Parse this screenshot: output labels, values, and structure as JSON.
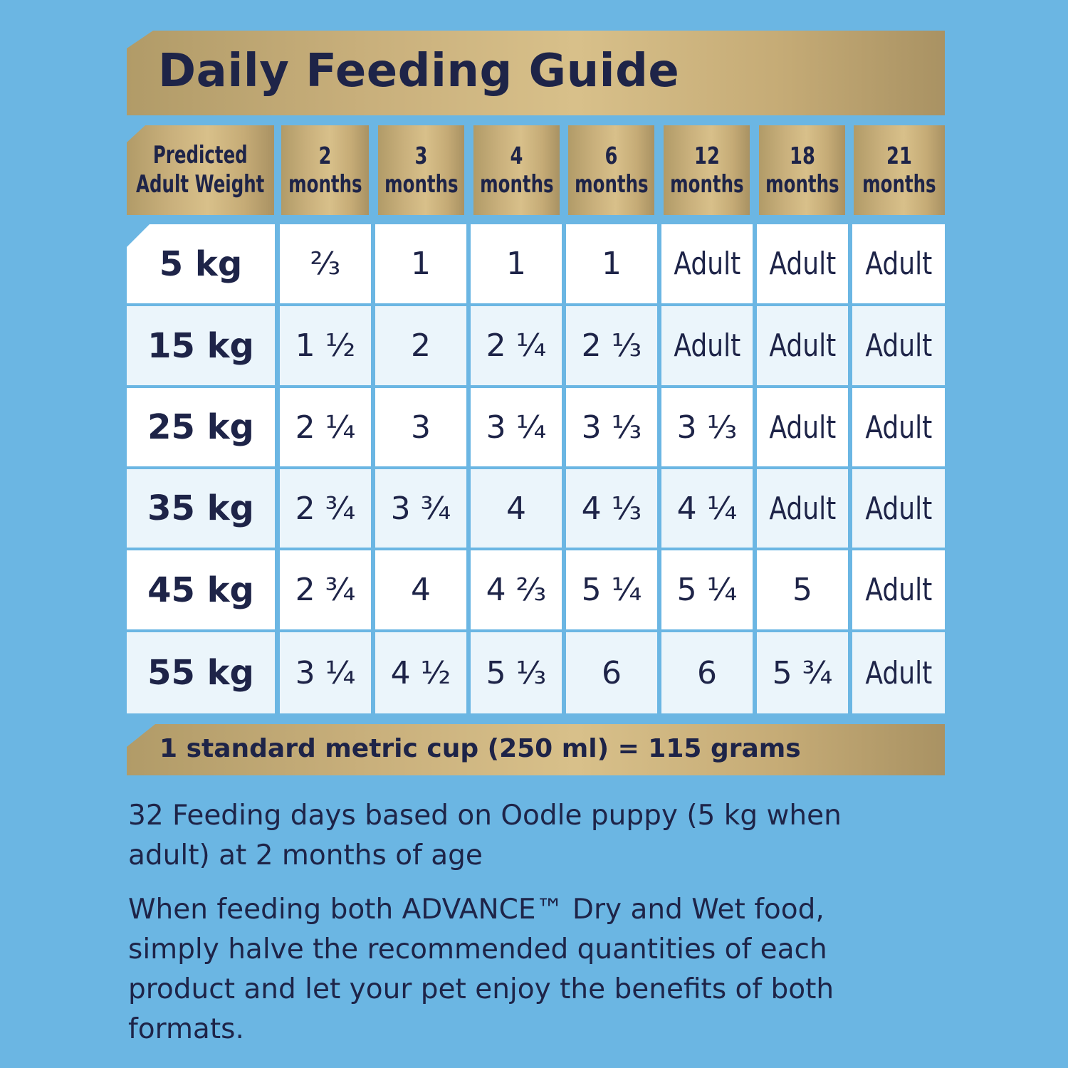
{
  "title": "Daily Feeding Guide",
  "header": {
    "weight_label_line1": "Predicted",
    "weight_label_line2": "Adult Weight",
    "ages": [
      {
        "num": "2",
        "unit": "months"
      },
      {
        "num": "3",
        "unit": "months"
      },
      {
        "num": "4",
        "unit": "months"
      },
      {
        "num": "6",
        "unit": "months"
      },
      {
        "num": "12",
        "unit": "months"
      },
      {
        "num": "18",
        "unit": "months"
      },
      {
        "num": "21",
        "unit": "months"
      }
    ]
  },
  "rows": [
    {
      "weight": "5 kg",
      "values": [
        "⅔",
        "1",
        "1",
        "1",
        "Adult",
        "Adult",
        "Adult"
      ]
    },
    {
      "weight": "15 kg",
      "values": [
        "1 ½",
        "2",
        "2 ¼",
        "2 ⅓",
        "Adult",
        "Adult",
        "Adult"
      ]
    },
    {
      "weight": "25 kg",
      "values": [
        "2 ¼",
        "3",
        "3 ¼",
        "3 ⅓",
        "3 ⅓",
        "Adult",
        "Adult"
      ]
    },
    {
      "weight": "35 kg",
      "values": [
        "2 ¾",
        "3 ¾",
        "4",
        "4 ⅓",
        "4 ¼",
        "Adult",
        "Adult"
      ]
    },
    {
      "weight": "45 kg",
      "values": [
        "2 ¾",
        "4",
        "4 ⅔",
        "5 ¼",
        "5 ¼",
        "5",
        "Adult"
      ]
    },
    {
      "weight": "55 kg",
      "values": [
        "3 ¼",
        "4 ½",
        "5 ⅓",
        "6",
        "6",
        "5 ¾",
        "Adult"
      ]
    }
  ],
  "cup_note": "1 standard metric cup (250 ml) = 115 grams",
  "paragraph1": "32 Feeding days based on Oodle puppy (5 kg when adult) at 2 months of age",
  "paragraph2": "When feeding both ADVANCE™ Dry and Wet food, simply halve the recommended quantities of each product and let your pet enjoy the benefits of both formats.",
  "colors": {
    "background": "#6bb6e3",
    "gold": "#c9b07c",
    "navy": "#1e2448",
    "row_alt": "#ebf5fb"
  }
}
